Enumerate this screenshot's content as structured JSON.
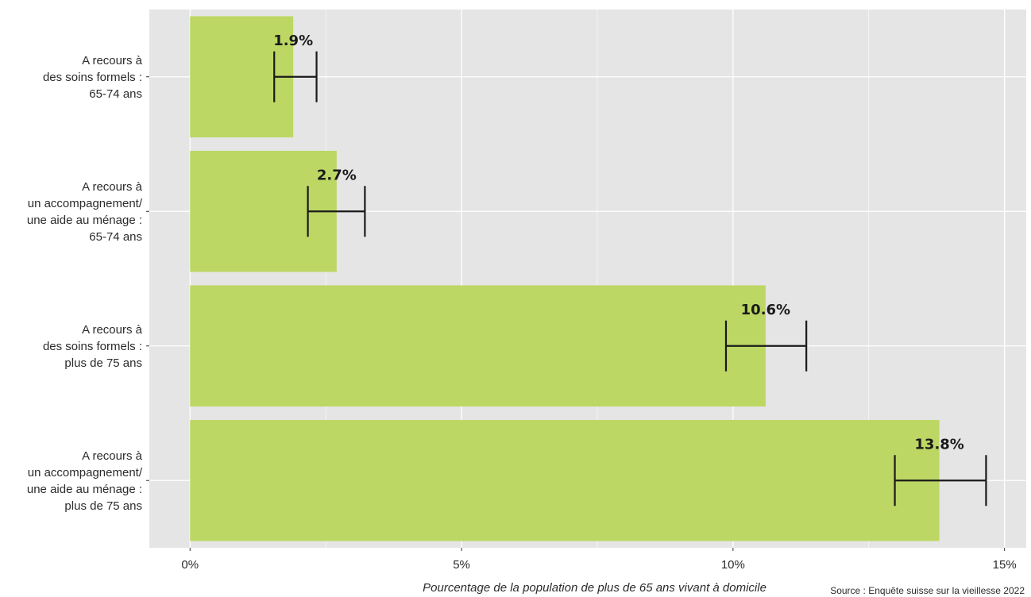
{
  "chart_data": {
    "type": "bar",
    "orientation": "horizontal",
    "categories": [
      [
        "A recours à",
        "des soins formels :",
        "65-74 ans"
      ],
      [
        "A recours à",
        "un accompagnement/",
        "une aide au ménage :",
        "65-74 ans"
      ],
      [
        "A recours à",
        "des soins formels :",
        "plus de 75 ans"
      ],
      [
        "A recours à",
        "un accompagnement/",
        "une aide au ménage :",
        "plus de 75 ans"
      ]
    ],
    "values": [
      1.9,
      2.7,
      10.6,
      13.8
    ],
    "value_labels": [
      "1.9%",
      "2.7%",
      "10.6%",
      "13.8%"
    ],
    "error_low": [
      1.55,
      2.17,
      9.87,
      12.98
    ],
    "error_high": [
      2.33,
      3.22,
      11.35,
      14.66
    ],
    "xlabel": "Pourcentage de la population de plus de 65 ans vivant à domicile",
    "ylabel": "",
    "xlim": [
      -0.75,
      15.4
    ],
    "xticks": [
      0,
      5,
      10,
      15
    ],
    "xtick_labels": [
      "0%",
      "5%",
      "10%",
      "15%"
    ],
    "grid": true,
    "source": "Source : Enquête suisse sur la vieillesse 2022",
    "colors": {
      "bar": "#bcd763",
      "panel": "#e5e5e5",
      "grid": "#ffffff",
      "error": "#1a1a1a",
      "text": "#2b2b2b"
    }
  }
}
